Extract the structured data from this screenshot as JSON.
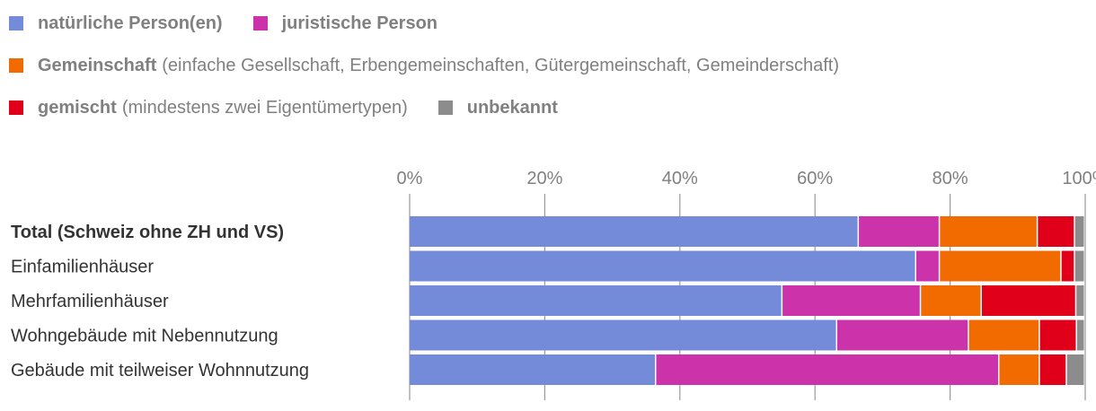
{
  "legend": {
    "rows": [
      [
        {
          "name": "natürliche Person(en)",
          "note": "",
          "color": "#738bd9"
        },
        {
          "name": "juristische Person",
          "note": "",
          "color": "#cc33aa"
        }
      ],
      [
        {
          "name": "Gemeinschaft",
          "note": "(einfache Gesellschaft, Erbengemeinschaften, Gütergemeinschaft, Gemeinderschaft)",
          "color": "#f26b00"
        }
      ],
      [
        {
          "name": "gemischt",
          "note": "(mindestens zwei Eigentümertypen)",
          "color": "#e00019"
        },
        {
          "name": "unbekannt",
          "note": "",
          "color": "#8c8c8c"
        }
      ]
    ]
  },
  "chart_data": {
    "type": "bar",
    "orientation": "horizontal",
    "stacked": true,
    "xlim": [
      0,
      100
    ],
    "ticks": [
      "0%",
      "20%",
      "40%",
      "60%",
      "80%",
      "100%"
    ],
    "tick_values": [
      0,
      20,
      40,
      60,
      80,
      100
    ],
    "categories": [
      "Total (Schweiz ohne ZH und VS)",
      "Einfamilienhäuser",
      "Mehrfamilienhäuser",
      "Wohngebäude mit Nebennutzung",
      "Gebäude mit teilweiser Wohnnutzung"
    ],
    "emphasized_category_index": 0,
    "series": [
      {
        "name": "natürliche Person(en)",
        "color": "#738bd9",
        "values": [
          66.5,
          75.0,
          55.2,
          63.3,
          36.5
        ]
      },
      {
        "name": "juristische Person",
        "color": "#cc33aa",
        "values": [
          12.0,
          3.5,
          20.5,
          19.5,
          50.8
        ]
      },
      {
        "name": "Gemeinschaft",
        "color": "#f26b00",
        "values": [
          14.5,
          18.0,
          9.0,
          10.5,
          6.0
        ]
      },
      {
        "name": "gemischt",
        "color": "#e00019",
        "values": [
          5.5,
          2.0,
          14.0,
          5.5,
          4.0
        ]
      },
      {
        "name": "unbekannt",
        "color": "#8c8c8c",
        "values": [
          1.5,
          1.5,
          1.3,
          1.2,
          2.7
        ]
      }
    ],
    "grid": true
  }
}
